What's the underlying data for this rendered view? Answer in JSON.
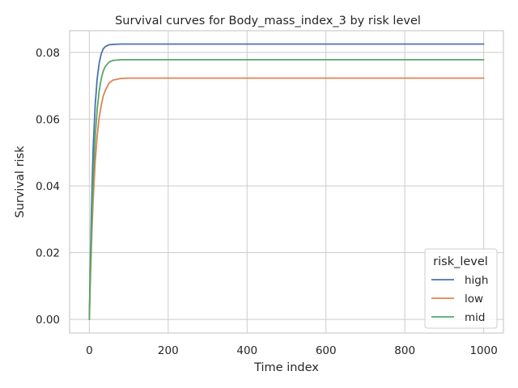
{
  "chart_data": {
    "type": "line",
    "title": "Survival curves for Body_mass_index_3 by risk level",
    "xlabel": "Time index",
    "ylabel": "Survival risk",
    "xlim": [
      -50,
      1050
    ],
    "ylim": [
      -0.0041,
      0.0865
    ],
    "x_ticks": [
      0,
      200,
      400,
      600,
      800,
      1000
    ],
    "y_ticks": [
      0.0,
      0.02,
      0.04,
      0.06,
      0.08
    ],
    "x_tick_labels": [
      "0",
      "200",
      "400",
      "600",
      "800",
      "1000"
    ],
    "y_tick_labels": [
      "0.00",
      "0.02",
      "0.04",
      "0.06",
      "0.08"
    ],
    "grid": true,
    "legend": {
      "title": "risk_level",
      "position": "lower-right"
    },
    "series": [
      {
        "name": "high",
        "color": "#4c72b0",
        "x": [
          0,
          2,
          5,
          8,
          10,
          15,
          20,
          25,
          30,
          35,
          40,
          50,
          60,
          80,
          100,
          150,
          200,
          400,
          600,
          800,
          1000
        ],
        "y": [
          0.0,
          0.0135,
          0.031,
          0.0445,
          0.052,
          0.0645,
          0.0722,
          0.0768,
          0.0795,
          0.081,
          0.0817,
          0.0823,
          0.0824,
          0.0825,
          0.0825,
          0.0825,
          0.0825,
          0.0825,
          0.0825,
          0.0825,
          0.0825
        ]
      },
      {
        "name": "low",
        "color": "#dd8452",
        "x": [
          0,
          2,
          5,
          8,
          10,
          15,
          20,
          25,
          30,
          35,
          40,
          50,
          60,
          80,
          100,
          150,
          200,
          400,
          600,
          800,
          1000
        ],
        "y": [
          0.0,
          0.009,
          0.021,
          0.031,
          0.0365,
          0.0475,
          0.055,
          0.0605,
          0.064,
          0.0668,
          0.0685,
          0.0708,
          0.0717,
          0.0722,
          0.0723,
          0.0723,
          0.0723,
          0.0723,
          0.0723,
          0.0723,
          0.0723
        ]
      },
      {
        "name": "mid",
        "color": "#55a868",
        "x": [
          0,
          2,
          5,
          8,
          10,
          15,
          20,
          25,
          30,
          35,
          40,
          50,
          60,
          80,
          100,
          150,
          200,
          400,
          600,
          800,
          1000
        ],
        "y": [
          0.0,
          0.011,
          0.025,
          0.0365,
          0.043,
          0.055,
          0.063,
          0.0685,
          0.072,
          0.0743,
          0.0757,
          0.0771,
          0.0776,
          0.0778,
          0.0778,
          0.0778,
          0.0778,
          0.0778,
          0.0778,
          0.0778,
          0.0778
        ]
      }
    ]
  }
}
